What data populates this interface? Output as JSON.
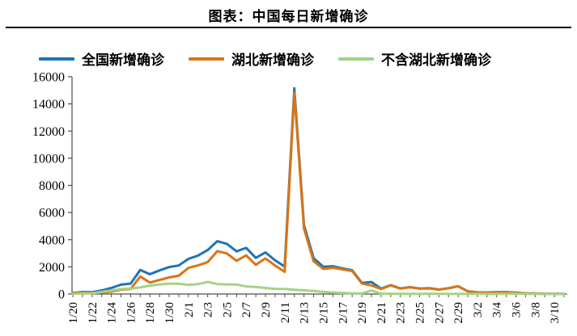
{
  "title": "图表：中国每日新增确诊",
  "legend": {
    "items": [
      {
        "label": "全国新增确诊",
        "color": "#1F74B4"
      },
      {
        "label": "湖北新增确诊",
        "color": "#DB7414"
      },
      {
        "label": "不含湖北新增确诊",
        "color": "#A3D384"
      }
    ]
  },
  "chart_data": {
    "type": "line",
    "title": "图表：中国每日新增确诊",
    "xlabel": "",
    "ylabel": "",
    "ylim": [
      0,
      16000
    ],
    "y_tick_step": 2000,
    "y_ticks": [
      0,
      2000,
      4000,
      6000,
      8000,
      10000,
      12000,
      14000,
      16000
    ],
    "grid": false,
    "legend_position": "top",
    "x_label_every": 2,
    "x_label_rotation": -90,
    "x": [
      "1/20",
      "1/21",
      "1/22",
      "1/23",
      "1/24",
      "1/25",
      "1/26",
      "1/27",
      "1/28",
      "1/29",
      "1/30",
      "1/31",
      "2/1",
      "2/2",
      "2/3",
      "2/4",
      "2/5",
      "2/6",
      "2/7",
      "2/8",
      "2/9",
      "2/10",
      "2/11",
      "2/12",
      "2/13",
      "2/14",
      "2/15",
      "2/16",
      "2/17",
      "2/18",
      "2/19",
      "2/20",
      "2/21",
      "2/22",
      "2/23",
      "2/24",
      "2/25",
      "2/26",
      "2/27",
      "2/28",
      "2/29",
      "3/1",
      "3/2",
      "3/3",
      "3/4",
      "3/5",
      "3/6",
      "3/7",
      "3/8",
      "3/9",
      "3/10",
      "3/11"
    ],
    "series": [
      {
        "name": "全国新增确诊",
        "color": "#1F74B4",
        "values": [
          77,
          149,
          131,
          259,
          444,
          688,
          769,
          1771,
          1459,
          1737,
          1982,
          2102,
          2590,
          2829,
          3235,
          3887,
          3694,
          3143,
          3399,
          2656,
          3062,
          2478,
          2015,
          15152,
          5090,
          2641,
          2009,
          2048,
          1886,
          1749,
          820,
          889,
          397,
          648,
          409,
          508,
          406,
          433,
          327,
          427,
          573,
          202,
          125,
          119,
          139,
          143,
          99,
          44,
          40,
          19,
          24,
          15
        ]
      },
      {
        "name": "湖北新增确诊",
        "color": "#DB7414",
        "values": [
          72,
          105,
          69,
          105,
          180,
          323,
          371,
          1291,
          840,
          1032,
          1220,
          1347,
          1921,
          2103,
          2345,
          3156,
          2987,
          2447,
          2841,
          2147,
          2618,
          2097,
          1638,
          14840,
          4823,
          2420,
          1843,
          1933,
          1807,
          1693,
          775,
          631,
          366,
          630,
          398,
          499,
          401,
          409,
          318,
          423,
          570,
          196,
          114,
          115,
          134,
          126,
          74,
          41,
          36,
          17,
          13,
          8
        ]
      },
      {
        "name": "不含湖北新增确诊",
        "color": "#A3D384",
        "values": [
          5,
          44,
          62,
          154,
          264,
          365,
          398,
          480,
          619,
          705,
          762,
          755,
          669,
          726,
          890,
          731,
          707,
          696,
          558,
          509,
          444,
          381,
          377,
          312,
          267,
          221,
          166,
          115,
          79,
          56,
          45,
          258,
          31,
          18,
          11,
          9,
          5,
          24,
          9,
          4,
          3,
          6,
          11,
          4,
          5,
          17,
          25,
          3,
          4,
          2,
          11,
          7
        ]
      }
    ]
  }
}
